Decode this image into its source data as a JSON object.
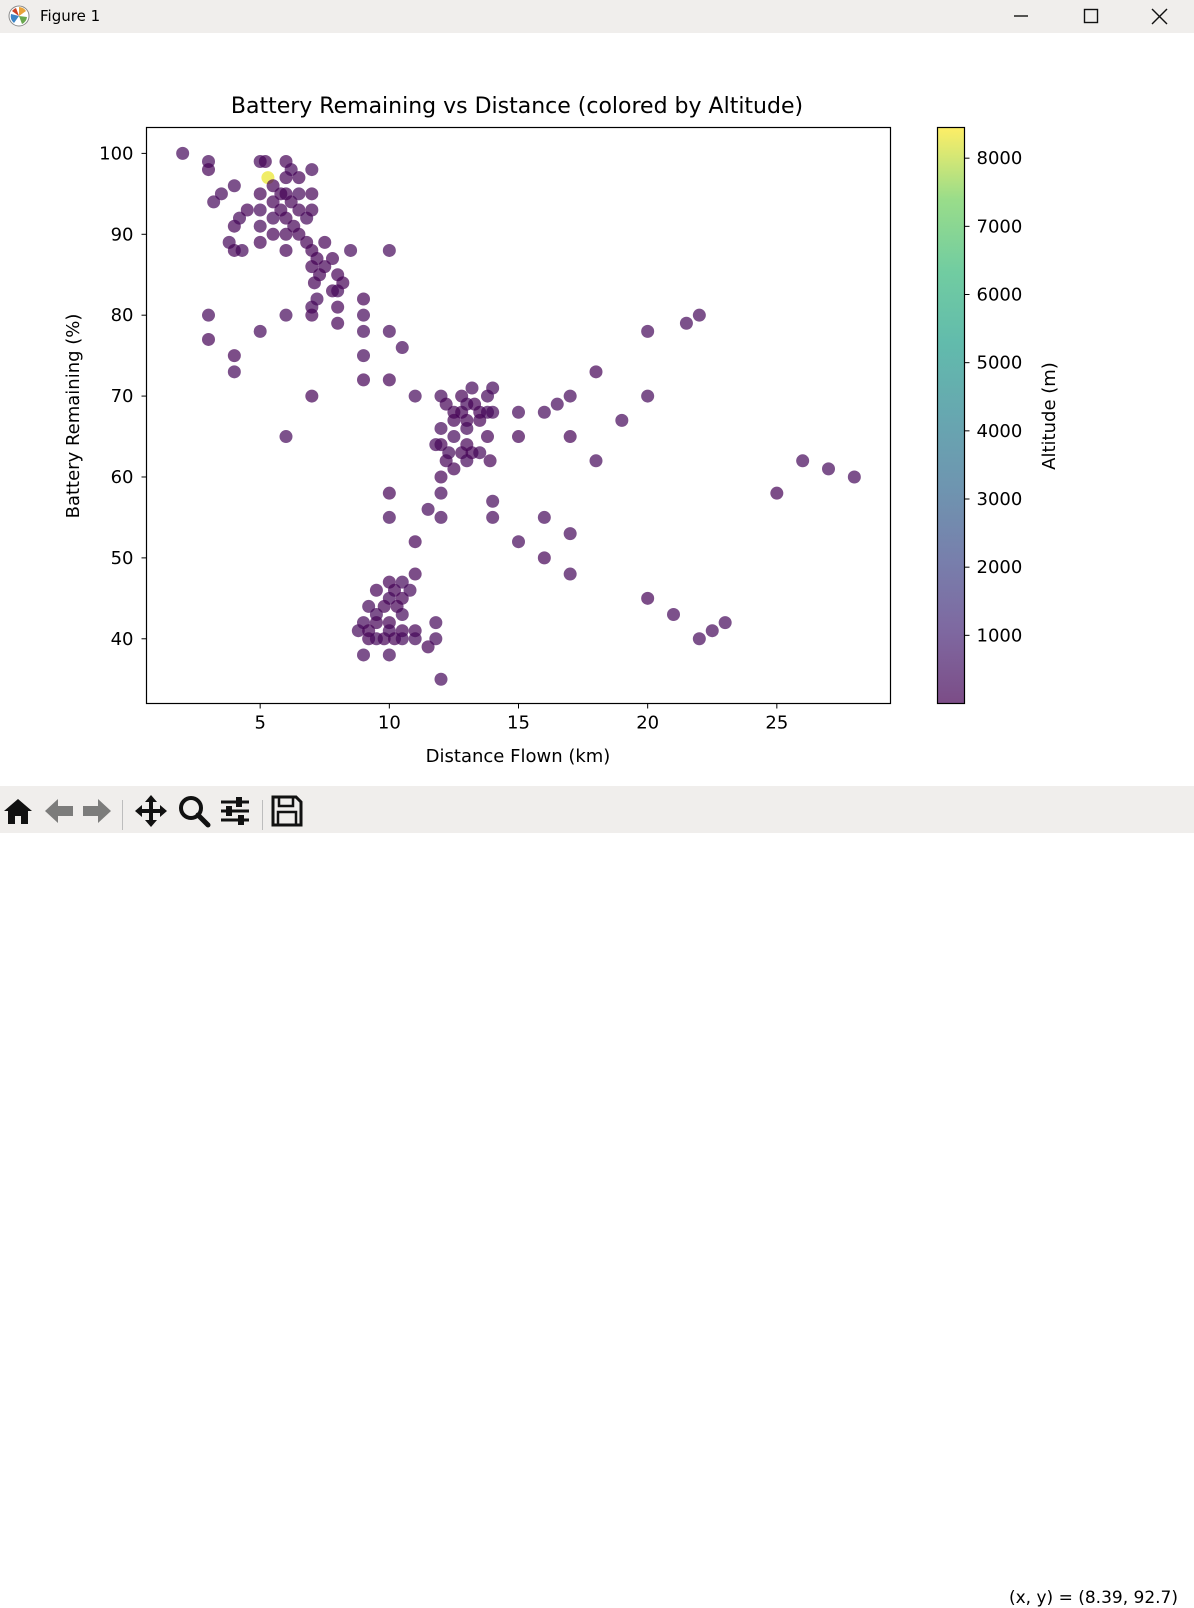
{
  "window": {
    "title": "Figure 1"
  },
  "status": {
    "coords": "(x, y) = (8.39, 92.7)"
  },
  "toolbar": {
    "buttons": [
      "home-icon",
      "back-icon",
      "forward-icon",
      "pan-icon",
      "zoom-icon",
      "configure-icon",
      "save-icon"
    ]
  },
  "chart_data": {
    "type": "scatter",
    "title": "Battery Remaining vs Distance (colored by Altitude)",
    "xlabel": "Distance Flown (km)",
    "ylabel": "Battery Remaining (%)",
    "xlim": [
      0.6,
      29.4
    ],
    "ylim": [
      32,
      103.2
    ],
    "xticks": [
      5,
      10,
      15,
      20,
      25
    ],
    "yticks": [
      40,
      50,
      60,
      70,
      80,
      90,
      100
    ],
    "colorbar": {
      "label": "Altitude (m)",
      "ticks": [
        1000,
        2000,
        3000,
        4000,
        5000,
        6000,
        7000,
        8000
      ],
      "range": [
        0,
        8450
      ],
      "colormap": "viridis"
    },
    "alpha": 0.7,
    "grid": false,
    "points": [
      {
        "x": 2,
        "y": 100,
        "c": 150
      },
      {
        "x": 3,
        "y": 99,
        "c": 150
      },
      {
        "x": 3,
        "y": 98,
        "c": 20
      },
      {
        "x": 3.2,
        "y": 94,
        "c": 150
      },
      {
        "x": 3.5,
        "y": 95,
        "c": 150
      },
      {
        "x": 3.8,
        "y": 89,
        "c": 150
      },
      {
        "x": 4,
        "y": 96,
        "c": 150
      },
      {
        "x": 4,
        "y": 91,
        "c": 20
      },
      {
        "x": 4,
        "y": 88,
        "c": 20
      },
      {
        "x": 4.2,
        "y": 92,
        "c": 150
      },
      {
        "x": 4.3,
        "y": 88,
        "c": 150
      },
      {
        "x": 4.5,
        "y": 93,
        "c": 20
      },
      {
        "x": 5,
        "y": 95,
        "c": 20
      },
      {
        "x": 5,
        "y": 93,
        "c": 150
      },
      {
        "x": 5,
        "y": 91,
        "c": 150
      },
      {
        "x": 5,
        "y": 89,
        "c": 20
      },
      {
        "x": 5,
        "y": 99,
        "c": 150
      },
      {
        "x": 5.2,
        "y": 99,
        "c": 20
      },
      {
        "x": 5.3,
        "y": 97,
        "c": 8200
      },
      {
        "x": 5.5,
        "y": 96,
        "c": 20
      },
      {
        "x": 5.5,
        "y": 94,
        "c": 20
      },
      {
        "x": 5.5,
        "y": 92,
        "c": 150
      },
      {
        "x": 5.5,
        "y": 90,
        "c": 20
      },
      {
        "x": 5.8,
        "y": 95,
        "c": 20
      },
      {
        "x": 5.8,
        "y": 93,
        "c": 20
      },
      {
        "x": 6,
        "y": 99,
        "c": 20
      },
      {
        "x": 6,
        "y": 97,
        "c": 20
      },
      {
        "x": 6,
        "y": 95,
        "c": 20
      },
      {
        "x": 6,
        "y": 92,
        "c": 20
      },
      {
        "x": 6,
        "y": 90,
        "c": 20
      },
      {
        "x": 6,
        "y": 88,
        "c": 20
      },
      {
        "x": 6.2,
        "y": 98,
        "c": 150
      },
      {
        "x": 6.2,
        "y": 94,
        "c": 20
      },
      {
        "x": 6.3,
        "y": 91,
        "c": 20
      },
      {
        "x": 6.5,
        "y": 97,
        "c": 20
      },
      {
        "x": 6.5,
        "y": 95,
        "c": 150
      },
      {
        "x": 6.5,
        "y": 93,
        "c": 20
      },
      {
        "x": 6.5,
        "y": 90,
        "c": 20
      },
      {
        "x": 6.8,
        "y": 89,
        "c": 20
      },
      {
        "x": 6.8,
        "y": 92,
        "c": 150
      },
      {
        "x": 7,
        "y": 98,
        "c": 150
      },
      {
        "x": 7,
        "y": 95,
        "c": 20
      },
      {
        "x": 7,
        "y": 93,
        "c": 20
      },
      {
        "x": 7,
        "y": 88,
        "c": 20
      },
      {
        "x": 7,
        "y": 86,
        "c": 20
      },
      {
        "x": 7.1,
        "y": 84,
        "c": 20
      },
      {
        "x": 7.2,
        "y": 87,
        "c": 20
      },
      {
        "x": 7.3,
        "y": 85,
        "c": 20
      },
      {
        "x": 7.5,
        "y": 89,
        "c": 20
      },
      {
        "x": 7.5,
        "y": 86,
        "c": 20
      },
      {
        "x": 7.8,
        "y": 87,
        "c": 20
      },
      {
        "x": 7.8,
        "y": 83,
        "c": 20
      },
      {
        "x": 8,
        "y": 85,
        "c": 20
      },
      {
        "x": 8,
        "y": 83,
        "c": 150
      },
      {
        "x": 8.2,
        "y": 84,
        "c": 20
      },
      {
        "x": 8.5,
        "y": 88,
        "c": 150
      },
      {
        "x": 7,
        "y": 81,
        "c": 150
      },
      {
        "x": 7.2,
        "y": 82,
        "c": 150
      },
      {
        "x": 7,
        "y": 80,
        "c": 20
      },
      {
        "x": 8,
        "y": 81,
        "c": 20
      },
      {
        "x": 8,
        "y": 79,
        "c": 20
      },
      {
        "x": 9,
        "y": 82,
        "c": 20
      },
      {
        "x": 9,
        "y": 80,
        "c": 150
      },
      {
        "x": 9,
        "y": 78,
        "c": 150
      },
      {
        "x": 9,
        "y": 75,
        "c": 150
      },
      {
        "x": 9,
        "y": 72,
        "c": 20
      },
      {
        "x": 10,
        "y": 88,
        "c": 150
      },
      {
        "x": 10,
        "y": 78,
        "c": 150
      },
      {
        "x": 10.5,
        "y": 76,
        "c": 150
      },
      {
        "x": 10,
        "y": 72,
        "c": 20
      },
      {
        "x": 11,
        "y": 70,
        "c": 150
      },
      {
        "x": 3,
        "y": 80,
        "c": 150
      },
      {
        "x": 3,
        "y": 77,
        "c": 20
      },
      {
        "x": 4,
        "y": 75,
        "c": 20
      },
      {
        "x": 4,
        "y": 73,
        "c": 150
      },
      {
        "x": 5,
        "y": 78,
        "c": 150
      },
      {
        "x": 6,
        "y": 80,
        "c": 150
      },
      {
        "x": 7,
        "y": 70,
        "c": 20
      },
      {
        "x": 6,
        "y": 65,
        "c": 150
      },
      {
        "x": 12,
        "y": 70,
        "c": 150
      },
      {
        "x": 12.2,
        "y": 69,
        "c": 20
      },
      {
        "x": 12.5,
        "y": 68,
        "c": 20
      },
      {
        "x": 12.5,
        "y": 67,
        "c": 20
      },
      {
        "x": 12.8,
        "y": 70,
        "c": 20
      },
      {
        "x": 12.8,
        "y": 68,
        "c": 20
      },
      {
        "x": 13,
        "y": 69,
        "c": 150
      },
      {
        "x": 13,
        "y": 67,
        "c": 20
      },
      {
        "x": 13.2,
        "y": 71,
        "c": 150
      },
      {
        "x": 13.3,
        "y": 69,
        "c": 20
      },
      {
        "x": 13.5,
        "y": 68,
        "c": 20
      },
      {
        "x": 13.5,
        "y": 67,
        "c": 20
      },
      {
        "x": 13.8,
        "y": 70,
        "c": 150
      },
      {
        "x": 13.8,
        "y": 68,
        "c": 150
      },
      {
        "x": 14,
        "y": 71,
        "c": 150
      },
      {
        "x": 14,
        "y": 68,
        "c": 150
      },
      {
        "x": 12,
        "y": 66,
        "c": 150
      },
      {
        "x": 12,
        "y": 64,
        "c": 20
      },
      {
        "x": 12.2,
        "y": 62,
        "c": 20
      },
      {
        "x": 11.8,
        "y": 64,
        "c": 150
      },
      {
        "x": 12.3,
        "y": 63,
        "c": 150
      },
      {
        "x": 12.5,
        "y": 61,
        "c": 20
      },
      {
        "x": 12.5,
        "y": 65,
        "c": 150
      },
      {
        "x": 12.8,
        "y": 63,
        "c": 20
      },
      {
        "x": 13,
        "y": 64,
        "c": 20
      },
      {
        "x": 13,
        "y": 62,
        "c": 150
      },
      {
        "x": 13,
        "y": 66,
        "c": 150
      },
      {
        "x": 13.2,
        "y": 63,
        "c": 20
      },
      {
        "x": 13.5,
        "y": 63,
        "c": 150
      },
      {
        "x": 13.8,
        "y": 65,
        "c": 20
      },
      {
        "x": 13.9,
        "y": 62,
        "c": 20
      },
      {
        "x": 12,
        "y": 60,
        "c": 20
      },
      {
        "x": 12,
        "y": 58,
        "c": 150
      },
      {
        "x": 10,
        "y": 58,
        "c": 20
      },
      {
        "x": 10,
        "y": 55,
        "c": 150
      },
      {
        "x": 11.5,
        "y": 56,
        "c": 150
      },
      {
        "x": 12,
        "y": 55,
        "c": 150
      },
      {
        "x": 14,
        "y": 57,
        "c": 150
      },
      {
        "x": 14,
        "y": 55,
        "c": 150
      },
      {
        "x": 15,
        "y": 68,
        "c": 150
      },
      {
        "x": 15,
        "y": 65,
        "c": 20
      },
      {
        "x": 16,
        "y": 68,
        "c": 150
      },
      {
        "x": 16.5,
        "y": 69,
        "c": 150
      },
      {
        "x": 17,
        "y": 70,
        "c": 150
      },
      {
        "x": 17,
        "y": 65,
        "c": 20
      },
      {
        "x": 18,
        "y": 73,
        "c": 20
      },
      {
        "x": 18,
        "y": 62,
        "c": 150
      },
      {
        "x": 19,
        "y": 67,
        "c": 150
      },
      {
        "x": 20,
        "y": 70,
        "c": 150
      },
      {
        "x": 20,
        "y": 78,
        "c": 150
      },
      {
        "x": 21.5,
        "y": 79,
        "c": 150
      },
      {
        "x": 22,
        "y": 80,
        "c": 150
      },
      {
        "x": 15,
        "y": 52,
        "c": 150
      },
      {
        "x": 16,
        "y": 55,
        "c": 150
      },
      {
        "x": 16,
        "y": 50,
        "c": 20
      },
      {
        "x": 17,
        "y": 53,
        "c": 150
      },
      {
        "x": 17,
        "y": 48,
        "c": 150
      },
      {
        "x": 20,
        "y": 45,
        "c": 20
      },
      {
        "x": 21,
        "y": 43,
        "c": 150
      },
      {
        "x": 22,
        "y": 40,
        "c": 150
      },
      {
        "x": 22.5,
        "y": 41,
        "c": 150
      },
      {
        "x": 23,
        "y": 42,
        "c": 150
      },
      {
        "x": 25,
        "y": 58,
        "c": 20
      },
      {
        "x": 26,
        "y": 62,
        "c": 150
      },
      {
        "x": 27,
        "y": 61,
        "c": 150
      },
      {
        "x": 28,
        "y": 60,
        "c": 150
      },
      {
        "x": 11,
        "y": 52,
        "c": 20
      },
      {
        "x": 11,
        "y": 48,
        "c": 20
      },
      {
        "x": 9.5,
        "y": 46,
        "c": 20
      },
      {
        "x": 10,
        "y": 47,
        "c": 20
      },
      {
        "x": 10.2,
        "y": 46,
        "c": 20
      },
      {
        "x": 10.5,
        "y": 47,
        "c": 150
      },
      {
        "x": 10.5,
        "y": 45,
        "c": 20
      },
      {
        "x": 10,
        "y": 45,
        "c": 150
      },
      {
        "x": 10.3,
        "y": 44,
        "c": 20
      },
      {
        "x": 10.8,
        "y": 46,
        "c": 150
      },
      {
        "x": 9.8,
        "y": 44,
        "c": 20
      },
      {
        "x": 9.2,
        "y": 44,
        "c": 150
      },
      {
        "x": 9.5,
        "y": 43,
        "c": 150
      },
      {
        "x": 10,
        "y": 42,
        "c": 20
      },
      {
        "x": 10.5,
        "y": 43,
        "c": 150
      },
      {
        "x": 9,
        "y": 42,
        "c": 150
      },
      {
        "x": 8.8,
        "y": 41,
        "c": 150
      },
      {
        "x": 9.2,
        "y": 41,
        "c": 20
      },
      {
        "x": 9.5,
        "y": 42,
        "c": 20
      },
      {
        "x": 9.8,
        "y": 40,
        "c": 20
      },
      {
        "x": 9.2,
        "y": 40,
        "c": 20
      },
      {
        "x": 9.5,
        "y": 40,
        "c": 150
      },
      {
        "x": 10,
        "y": 41,
        "c": 150
      },
      {
        "x": 10.2,
        "y": 40,
        "c": 20
      },
      {
        "x": 10.5,
        "y": 41,
        "c": 20
      },
      {
        "x": 10.5,
        "y": 40,
        "c": 150
      },
      {
        "x": 11,
        "y": 41,
        "c": 20
      },
      {
        "x": 11,
        "y": 40,
        "c": 150
      },
      {
        "x": 11.5,
        "y": 39,
        "c": 20
      },
      {
        "x": 11.8,
        "y": 42,
        "c": 150
      },
      {
        "x": 11.8,
        "y": 40,
        "c": 150
      },
      {
        "x": 9,
        "y": 38,
        "c": 150
      },
      {
        "x": 10,
        "y": 38,
        "c": 150
      },
      {
        "x": 12,
        "y": 35,
        "c": 150
      }
    ]
  }
}
